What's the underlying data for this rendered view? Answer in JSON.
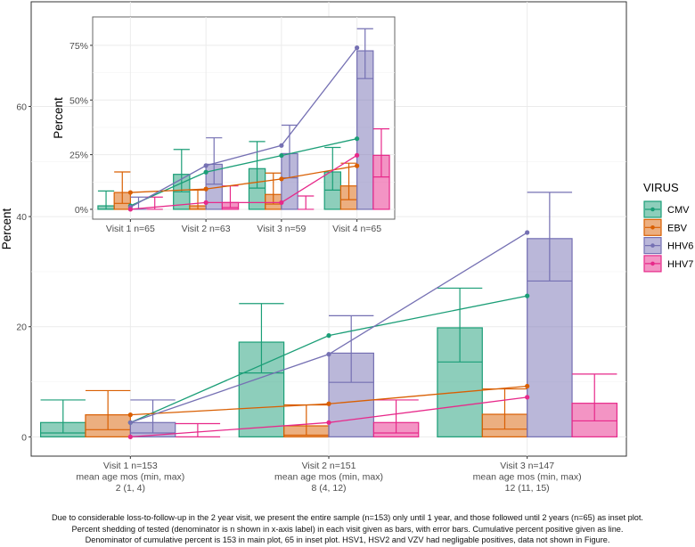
{
  "colors": {
    "CMV": "#1b9e77",
    "EBV": "#d95f02",
    "HHV6": "#7570b3",
    "HHV7": "#e7298a"
  },
  "legend": {
    "title": "VIRUS",
    "entries": [
      "CMV",
      "EBV",
      "HHV6",
      "HHV7"
    ]
  },
  "caption": [
    "Due to considerable loss-to-follow-up in the 2 year visit, we present the entire sample (n=153) only until 1 year, and those followed until 2 years (n=65) as inset plot.",
    "Percent shedding of tested (denominator is n shown in x-axis label) in each visit given as bars, with error bars. Cumulative percent positive given as line.",
    "Denominator of cumulative percent is 153 in main plot, 65 in inset plot. HSV1, HSV2 and VZV had negligable positives, data not shown in Figure."
  ],
  "chart_data": [
    {
      "type": "bar",
      "name": "main",
      "ylabel": "Percent",
      "ylim": [
        -3.5,
        79
      ],
      "yticks": [
        "0",
        "20",
        "40",
        "60"
      ],
      "ytick_values": [
        0,
        20,
        40,
        60
      ],
      "categories": [
        [
          "Visit 1 n=153",
          "mean age mos (min, max)",
          "2 (1, 4)"
        ],
        [
          "Visit 2 n=151",
          "mean age mos (min, max)",
          "8 (4, 12)"
        ],
        [
          "Visit 3 n=147",
          "mean age mos (min, max)",
          "12 (11, 15)"
        ]
      ],
      "series": [
        {
          "name": "CMV",
          "values": [
            2.6,
            17.2,
            19.8
          ],
          "err_low": [
            0.7,
            11.6,
            13.6
          ],
          "err_high": [
            6.7,
            24.2,
            27.0
          ],
          "cumulative": [
            2.6,
            18.4,
            25.6
          ]
        },
        {
          "name": "EBV",
          "values": [
            4.0,
            2.0,
            4.1
          ],
          "err_low": [
            1.3,
            0.3,
            1.4
          ],
          "err_high": [
            8.4,
            5.8,
            8.7
          ],
          "cumulative": [
            4.0,
            6.0,
            9.2
          ]
        },
        {
          "name": "HHV6",
          "values": [
            2.6,
            15.2,
            36.0
          ],
          "err_low": [
            0.7,
            9.9,
            28.3
          ],
          "err_high": [
            6.7,
            22.0,
            44.4
          ],
          "cumulative": [
            2.6,
            15.0,
            37.1
          ]
        },
        {
          "name": "HHV7",
          "values": [
            0,
            2.6,
            6.1
          ],
          "err_low": [
            0,
            0.7,
            2.9
          ],
          "err_high": [
            2.4,
            6.7,
            11.4
          ],
          "cumulative": [
            0,
            2.6,
            7.2
          ]
        }
      ]
    },
    {
      "type": "bar",
      "name": "inset",
      "ylabel": "Percent",
      "ylim": [
        -4.5,
        88
      ],
      "yticks": [
        "0%",
        "25%",
        "50%",
        "75%"
      ],
      "ytick_values": [
        0,
        25,
        50,
        75
      ],
      "categories": [
        [
          "Visit 1 n=65"
        ],
        [
          "Visit 2 n=63"
        ],
        [
          "Visit 3 n=59"
        ],
        [
          "Visit 4 n=65"
        ]
      ],
      "series": [
        {
          "name": "CMV",
          "values": [
            1.6,
            16.0,
            18.6,
            17.1
          ],
          "err_low": [
            0,
            8.0,
            9.7,
            8.8
          ],
          "err_high": [
            8.4,
            27.4,
            31.0,
            28.3
          ],
          "cumulative": [
            1.6,
            17.0,
            24.6,
            32.3
          ]
        },
        {
          "name": "EBV",
          "values": [
            7.7,
            1.6,
            6.8,
            10.7
          ],
          "err_low": [
            2.7,
            0,
            2.4,
            4.4
          ],
          "err_high": [
            17.1,
            8.8,
            16.6,
            21.1
          ],
          "cumulative": [
            7.7,
            9.3,
            13.9,
            19.9
          ]
        },
        {
          "name": "HHV6",
          "values": [
            0,
            20.6,
            25.5,
            72.5
          ],
          "err_low": [
            0,
            11.5,
            14.4,
            59.8
          ],
          "err_high": [
            5.6,
            32.7,
            38.5,
            82.6
          ],
          "cumulative": [
            1.0,
            20.0,
            29.2,
            73.9
          ]
        },
        {
          "name": "HHV7",
          "values": [
            0,
            3.1,
            0,
            24.7
          ],
          "err_low": [
            0,
            0.8,
            0,
            14.8
          ],
          "err_high": [
            5.6,
            10.7,
            6.1,
            36.8
          ],
          "cumulative": [
            0,
            3.1,
            3.1,
            24.7
          ]
        }
      ]
    }
  ]
}
